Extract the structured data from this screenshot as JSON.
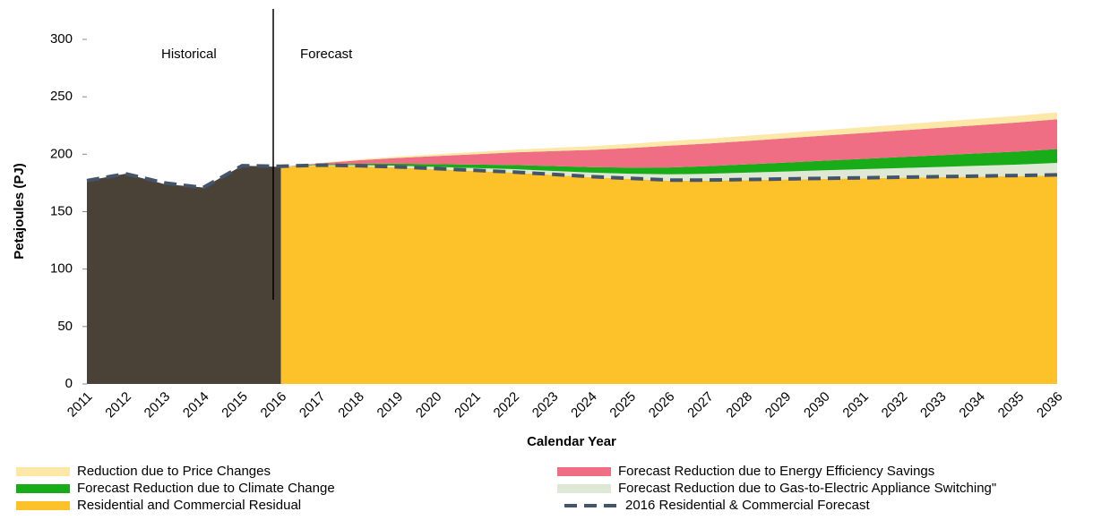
{
  "chart_data": {
    "type": "stacked_area",
    "x_label": "Calendar Year",
    "y_label": "Petajoules (PJ)",
    "annotations": [
      "Historical",
      "Forecast"
    ],
    "categories": [
      "2011",
      "2012",
      "2013",
      "2014",
      "2015",
      "2016",
      "2017",
      "2018",
      "2019",
      "2020",
      "2021",
      "2022",
      "2023",
      "2024",
      "2025",
      "2026",
      "2027",
      "2028",
      "2029",
      "2030",
      "2031",
      "2032",
      "2033",
      "2034",
      "2035",
      "2036"
    ],
    "ylim": [
      0,
      300
    ],
    "yticks": [
      0,
      50,
      100,
      150,
      200,
      250,
      300
    ],
    "historical": {
      "color": "#4a4236",
      "values": [
        177,
        183,
        174,
        171,
        190,
        189,
        null,
        null,
        null,
        null,
        null,
        null,
        null,
        null,
        null,
        null,
        null,
        null,
        null,
        null,
        null,
        null,
        null,
        null,
        null,
        null
      ]
    },
    "series": [
      {
        "name": "Residential and Commercial Residual",
        "color": "#fdc12a",
        "values": [
          null,
          null,
          null,
          null,
          null,
          189,
          190,
          189.5,
          188.5,
          187,
          185.5,
          184,
          182,
          180,
          178.5,
          177,
          177,
          177.5,
          178,
          178.5,
          179,
          179.5,
          180,
          180.5,
          181,
          181.5
        ]
      },
      {
        "name": "Forecast Reduction due to Gas-to-Electric Appliance Switching\"",
        "color": "#dfe8d5",
        "values": [
          null,
          null,
          null,
          null,
          null,
          0,
          0.5,
          1,
          1.5,
          2,
          2.5,
          3,
          3.5,
          4,
          4.5,
          5.5,
          6,
          6.5,
          7,
          7.5,
          8,
          8.5,
          9,
          9.5,
          10,
          11
        ]
      },
      {
        "name": "Forecast Reduction due to Climate Change",
        "color": "#18ad18",
        "values": [
          null,
          null,
          null,
          null,
          null,
          0,
          0.6,
          1.2,
          1.8,
          2.4,
          3,
          3.6,
          4.2,
          4.8,
          5.4,
          6,
          6.6,
          7.2,
          7.8,
          8.4,
          9,
          9.6,
          10.2,
          10.8,
          11.4,
          12
        ]
      },
      {
        "name": "Forecast Reduction due to Energy Efficiency Savings",
        "color": "#f06e83",
        "values": [
          null,
          null,
          null,
          null,
          null,
          0,
          1,
          3,
          5,
          7,
          9,
          11,
          13,
          15,
          17,
          19,
          19.7,
          20.4,
          21.1,
          21.8,
          22.5,
          23.2,
          23.9,
          24.6,
          25.3,
          26
        ]
      },
      {
        "name": "Reduction due to Price Changes",
        "color": "#fde8a8",
        "values": [
          null,
          null,
          null,
          null,
          null,
          0,
          0.4,
          0.8,
          1.2,
          1.6,
          2,
          2.4,
          2.8,
          3.2,
          3.6,
          4,
          4.2,
          4.4,
          4.6,
          4.8,
          5,
          5.2,
          5.4,
          5.6,
          5.8,
          6
        ]
      }
    ],
    "forecast_line": {
      "name": "2016 Residential & Commercial Forecast",
      "color": "#44546a",
      "values": [
        177,
        183,
        175,
        171,
        190,
        189.5,
        190.5,
        190,
        189,
        187.5,
        186,
        184.5,
        182.5,
        180.5,
        179,
        177.5,
        177.5,
        178,
        178.5,
        179,
        179.5,
        180,
        180.5,
        181,
        181.5,
        182
      ]
    }
  }
}
